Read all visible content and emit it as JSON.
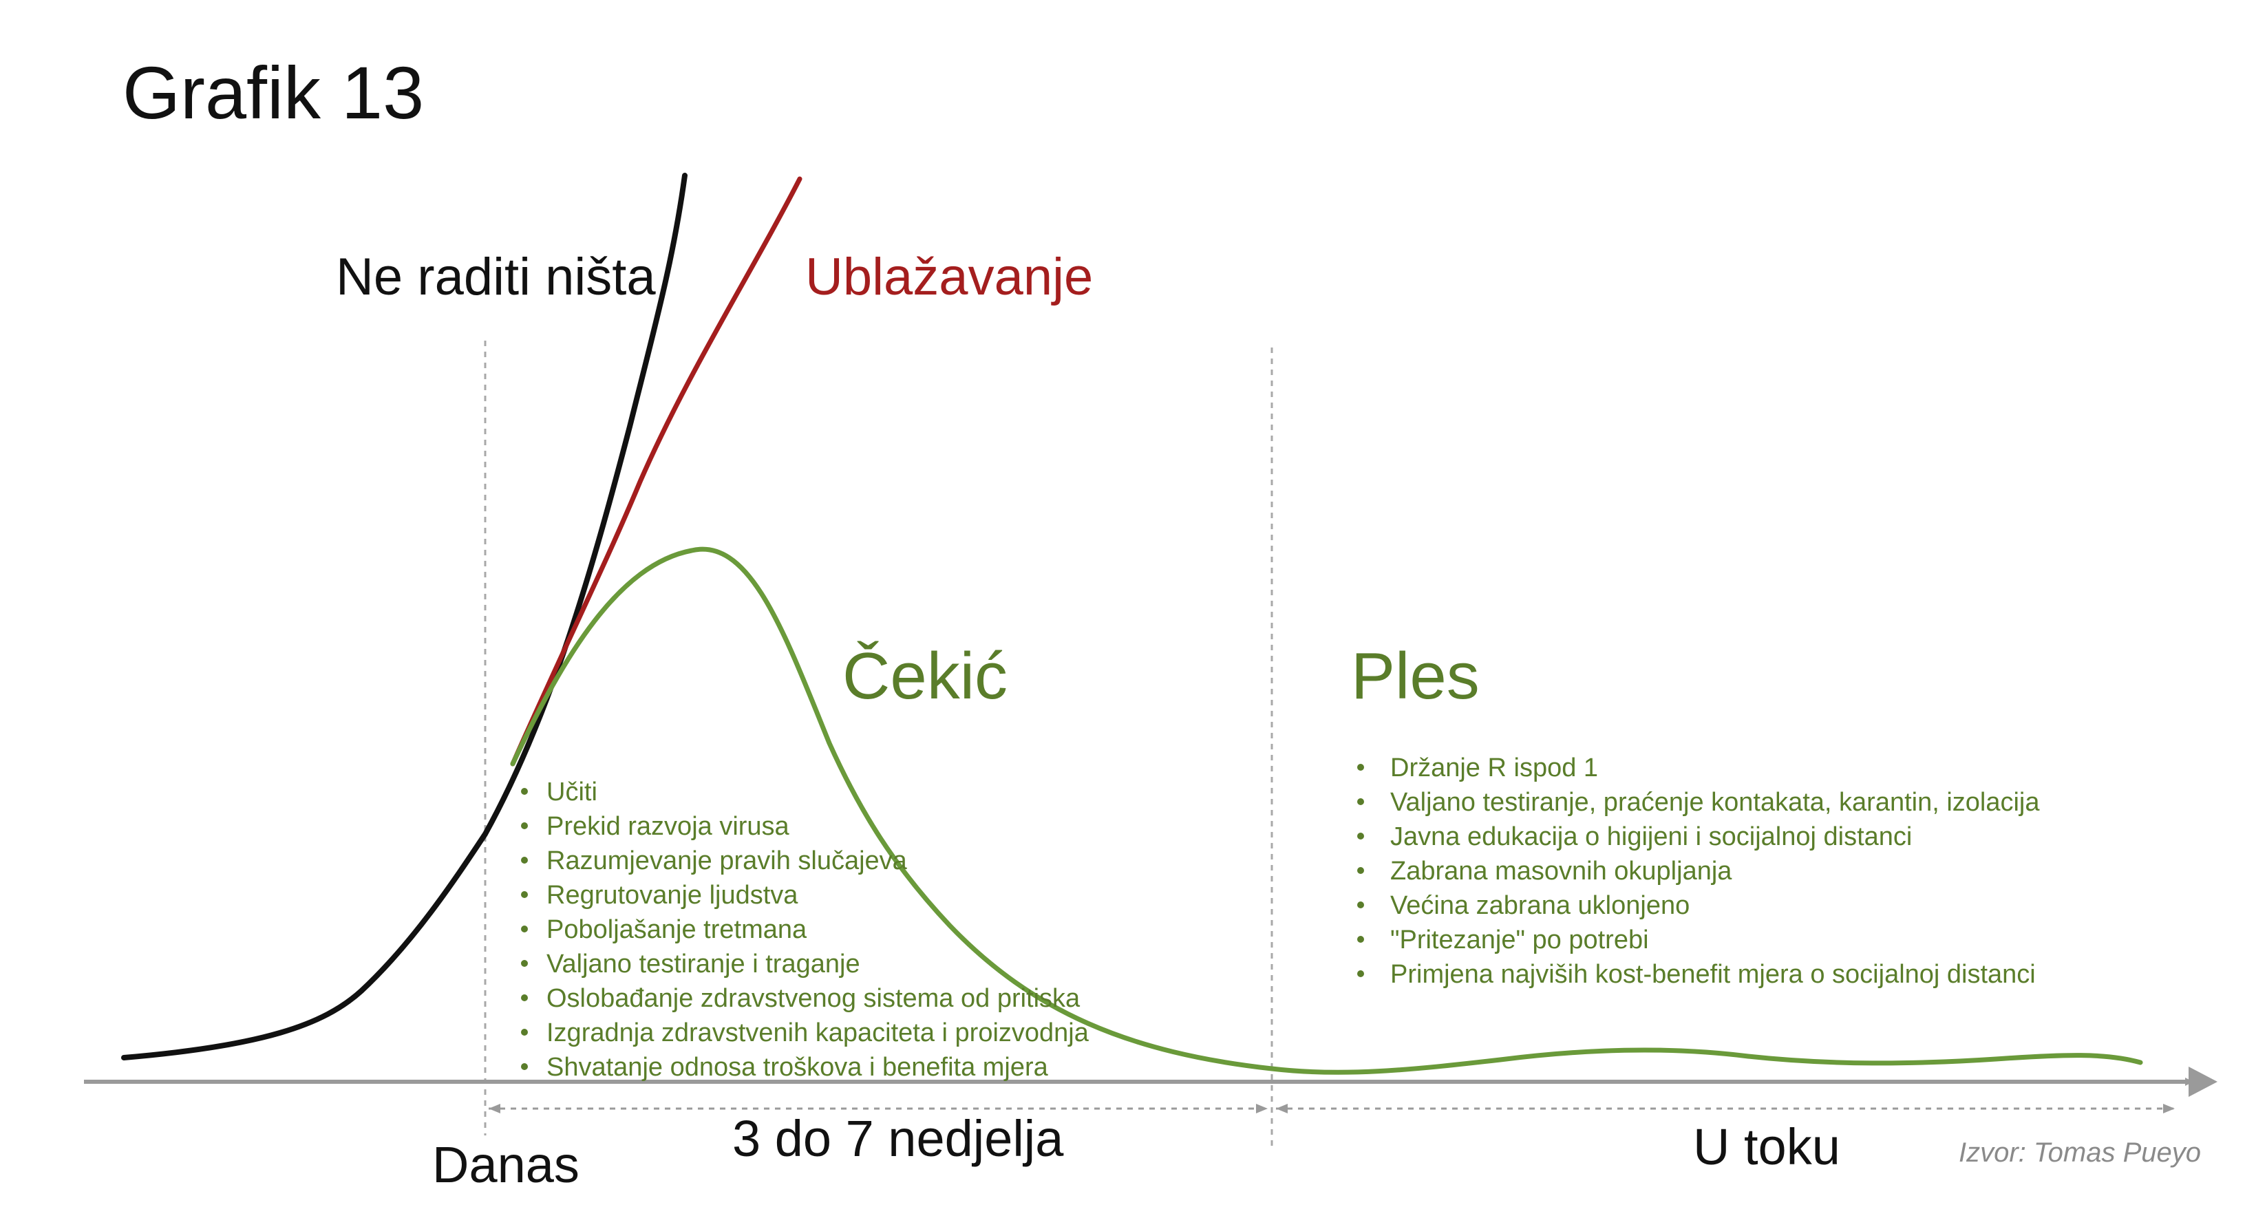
{
  "title": "Grafik 13",
  "curves": {
    "do_nothing": "Ne raditi ništa",
    "mitigation": "Ublažavanje",
    "hammer": "Čekić",
    "dance": "Ples"
  },
  "hammer_items": [
    "Učiti",
    "Prekid razvoja virusa",
    "Razumjevanje pravih slučajeva",
    "Regrutovanje ljudstva",
    "Poboljašanje tretmana",
    "Valjano testiranje i traganje",
    "Oslobađanje zdravstvenog sistema od pritiska",
    "Izgradnja zdravstvenih kapaciteta i proizvodnja",
    "Shvatanje odnosa troškova i benefita mjera"
  ],
  "dance_items": [
    "Držanje R ispod 1",
    "Valjano testiranje, praćenje kontakata, karantin, izolacija",
    "Javna edukacija o higijeni i socijalnoj distanci",
    "Zabrana masovnih okupljanja",
    "Većina zabrana uklonjeno",
    "\"Pritezanje\" po potrebi",
    "Primjena najviših kost-benefit mjera o socijalnoj distanci"
  ],
  "axis": {
    "today": "Danas",
    "duration": "3 do 7 nedjelja",
    "ongoing": "U toku"
  },
  "source": "Izvor: Tomas Pueyo",
  "colors": {
    "do_nothing": "#111111",
    "mitigation": "#a41e1e",
    "hammer_dance": "#6a9a3a",
    "bullet_text": "#5a7d2a",
    "axis": "#9a9a9a"
  }
}
